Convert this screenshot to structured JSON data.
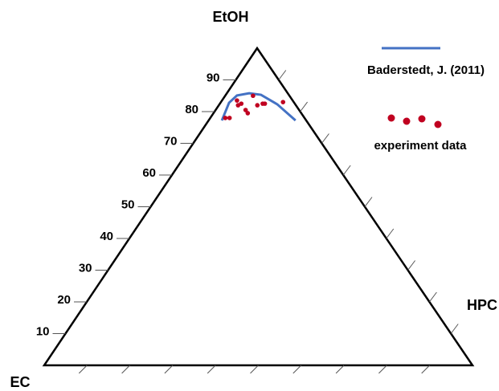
{
  "chart_data": {
    "type": "ternary",
    "vertices": {
      "top": "EtOH",
      "left": "EC",
      "right": "HPC"
    },
    "ticks": [
      10,
      20,
      30,
      40,
      50,
      60,
      70,
      80,
      90
    ],
    "series": [
      {
        "name": "Baderstedt, J. (2011)",
        "type": "line",
        "color": "#4472c4",
        "EtOH": [
          77.2,
          82.8,
          85.1,
          85.8,
          85.3,
          82.3,
          77.2
        ],
        "HPC": [
          3.1,
          2.0,
          2.7,
          5.2,
          8.2,
          13.5,
          20.3
        ]
      },
      {
        "name": "experiment data",
        "type": "scatter",
        "color": "#c00020",
        "EtOH": [
          78.0,
          78.0,
          83.5,
          82.0,
          82.5,
          80.5,
          79.5,
          85.0,
          82.0,
          82.5,
          82.5,
          83.0
        ],
        "HPC": [
          3.5,
          4.5,
          3.5,
          4.5,
          5.0,
          7.0,
          8.0,
          6.5,
          9.0,
          10.0,
          10.5,
          14.5
        ]
      }
    ]
  }
}
